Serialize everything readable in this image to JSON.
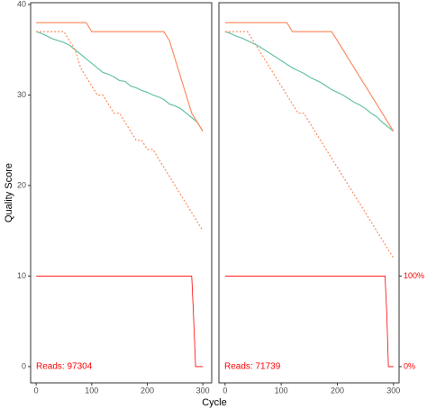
{
  "xlabel": "Cycle",
  "ylabel": "Quality Score",
  "chart_data": [
    {
      "type": "line",
      "reads_label": "Reads: 97304",
      "x": [
        0,
        10,
        20,
        30,
        40,
        50,
        60,
        70,
        80,
        90,
        100,
        110,
        120,
        130,
        140,
        150,
        160,
        170,
        180,
        190,
        200,
        210,
        220,
        230,
        240,
        250,
        260,
        270,
        280,
        290,
        300
      ],
      "xlim": [
        -10,
        316
      ],
      "xticks": [
        0,
        100,
        200,
        300
      ],
      "ylim": [
        -1.8,
        40.2
      ],
      "yticks": [
        0,
        10,
        20,
        30,
        40
      ],
      "y2lim": [
        -18,
        402
      ],
      "series": [
        {
          "color": "#66c2a5",
          "style": "solid",
          "values": [
            37,
            36.8,
            36.5,
            36.2,
            36,
            35.8,
            35.5,
            35,
            34.5,
            34,
            33.5,
            33,
            32.5,
            32.3,
            32,
            31.6,
            31.5,
            31,
            30.8,
            30.5,
            30.3,
            30,
            29.8,
            29.5,
            29,
            28.8,
            28.5,
            28,
            27.5,
            27,
            26
          ]
        },
        {
          "color": "#fc8d62",
          "style": "solid",
          "values": [
            38,
            38,
            38,
            38,
            38,
            38,
            38,
            38,
            38,
            38,
            37,
            37,
            37,
            37,
            37,
            37,
            37,
            37,
            37,
            37,
            37,
            37,
            37,
            37,
            36,
            34,
            32,
            30,
            28,
            27,
            26
          ]
        },
        {
          "color": "#fc8d62",
          "style": "dashed",
          "values": [
            37,
            37,
            37,
            37,
            37,
            37,
            36,
            35,
            33,
            32,
            31,
            30,
            30,
            29,
            28,
            28,
            27,
            26,
            25,
            25,
            24,
            24,
            23,
            22,
            21,
            20,
            19,
            18,
            17,
            16,
            15
          ]
        },
        {
          "color": "#ff0000",
          "style": "solid",
          "axis": "y2",
          "x": [
            0,
            280,
            283,
            287,
            300
          ],
          "values": [
            100,
            100,
            60,
            0,
            0
          ]
        }
      ]
    },
    {
      "type": "line",
      "reads_label": "Reads: 71739",
      "x": [
        0,
        10,
        20,
        30,
        40,
        50,
        60,
        70,
        80,
        90,
        100,
        110,
        120,
        130,
        140,
        150,
        160,
        170,
        180,
        190,
        200,
        210,
        220,
        230,
        240,
        250,
        260,
        270,
        280,
        290,
        300
      ],
      "xlim": [
        -11,
        310
      ],
      "xticks": [
        0,
        100,
        200,
        300
      ],
      "ylim": [
        -1.8,
        40.2
      ],
      "y2lim": [
        -18,
        402
      ],
      "y2ticks": [
        {
          "value": 100,
          "label": "100%"
        },
        {
          "value": 0,
          "label": "0%"
        }
      ],
      "series": [
        {
          "color": "#66c2a5",
          "style": "solid",
          "values": [
            37,
            36.8,
            36.5,
            36.3,
            36,
            35.7,
            35.4,
            35,
            34.6,
            34.2,
            33.8,
            33.4,
            33,
            32.7,
            32.4,
            32,
            31.7,
            31.4,
            31,
            30.6,
            30.3,
            30,
            29.6,
            29.2,
            28.9,
            28.5,
            28,
            27.6,
            27,
            26.5,
            26
          ]
        },
        {
          "color": "#fc8d62",
          "style": "solid",
          "values": [
            38,
            38,
            38,
            38,
            38,
            38,
            38,
            38,
            38,
            38,
            38,
            38,
            37,
            37,
            37,
            37,
            37,
            37,
            37,
            37,
            36,
            35,
            34,
            33,
            32,
            31,
            30,
            29,
            28,
            27,
            26
          ]
        },
        {
          "color": "#fc8d62",
          "style": "dashed",
          "values": [
            37,
            37,
            37,
            37,
            37,
            36,
            35,
            34,
            33,
            32,
            31,
            30,
            29,
            28,
            28,
            27,
            26,
            25,
            24,
            23,
            22,
            21,
            20,
            19,
            18,
            17,
            16,
            15,
            14,
            13,
            12
          ]
        },
        {
          "color": "#ff0000",
          "style": "solid",
          "axis": "y2",
          "x": [
            0,
            285,
            288,
            291,
            300
          ],
          "values": [
            100,
            100,
            60,
            0,
            0
          ]
        }
      ]
    }
  ]
}
